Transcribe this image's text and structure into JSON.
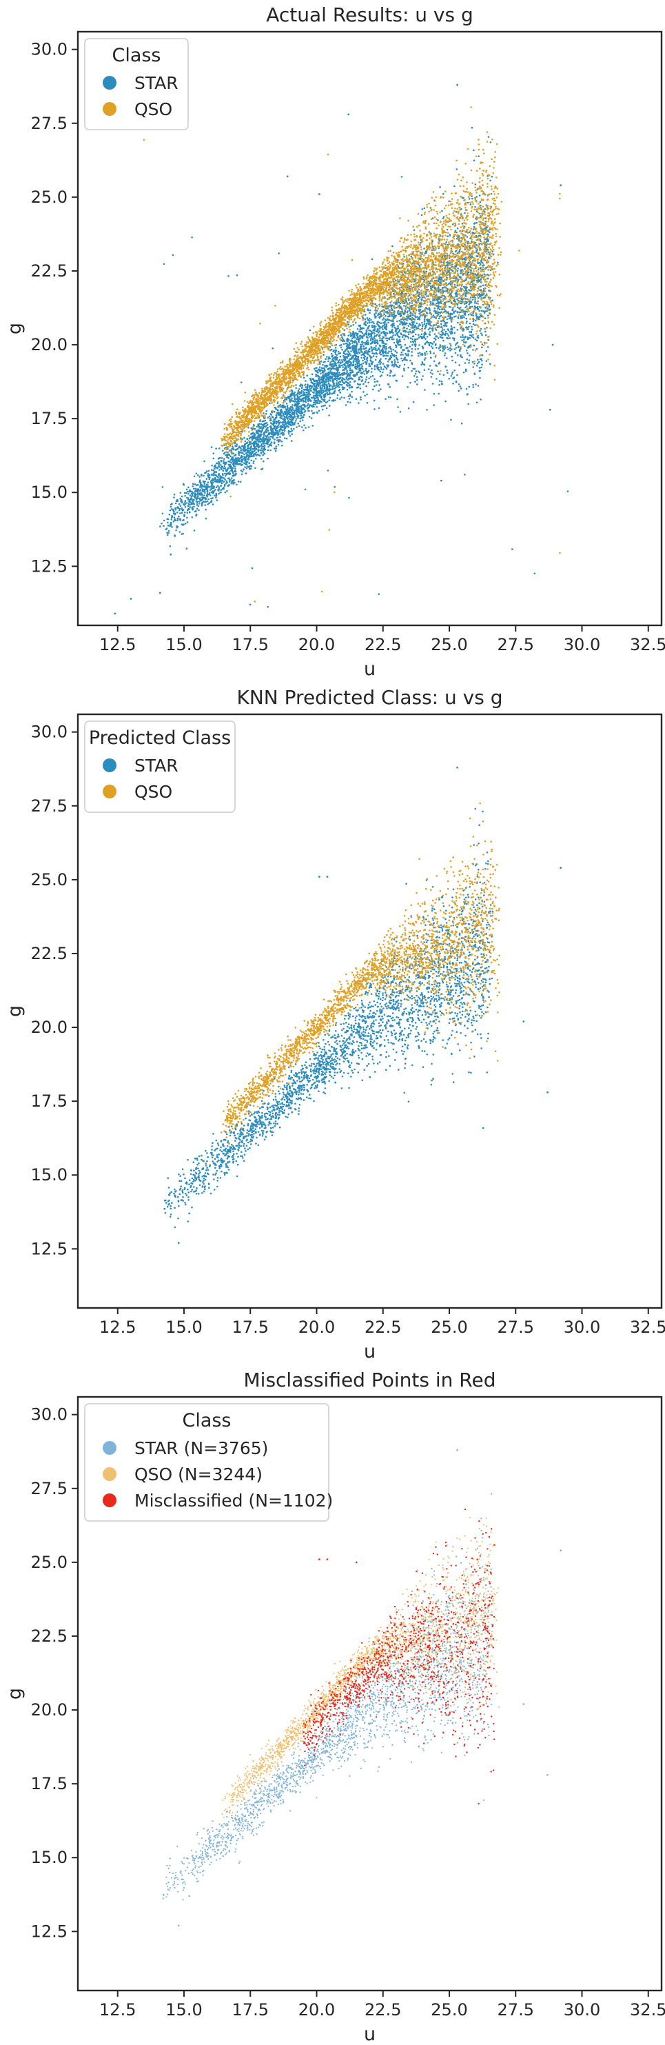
{
  "colors": {
    "star": "#2b8cbe",
    "qso": "#e0a024",
    "star_light": "#7fb3d9",
    "qso_light": "#f0c071",
    "misclassified": "#e8291c"
  },
  "chart_data": [
    {
      "type": "scatter",
      "title": "Actual Results: u vs g",
      "xlabel": "u",
      "ylabel": "g",
      "xlim": [
        11,
        33
      ],
      "ylim": [
        10.5,
        30.6
      ],
      "xticks": [
        "12.5",
        "15.0",
        "17.5",
        "20.0",
        "22.5",
        "25.0",
        "27.5",
        "30.0",
        "32.5"
      ],
      "yticks": [
        "12.5",
        "15.0",
        "17.5",
        "20.0",
        "22.5",
        "25.0",
        "27.5",
        "30.0"
      ],
      "grid": false,
      "legend_placement": "upper-left",
      "legend": {
        "title": "Class",
        "entries": [
          {
            "label": "STAR",
            "color": "#2b8cbe"
          },
          {
            "label": "QSO",
            "color": "#e0a024"
          }
        ]
      },
      "series": [
        {
          "name": "STAR",
          "color": "#2b8cbe",
          "trend": [
            [
              14.0,
              14.0
            ],
            [
              16.0,
              15.6
            ],
            [
              18.0,
              17.0
            ],
            [
              20.0,
              18.9
            ],
            [
              22.0,
              20.6
            ],
            [
              24.0,
              22.3
            ],
            [
              26.0,
              23.0
            ]
          ]
        },
        {
          "name": "QSO",
          "color": "#e0a024",
          "trend": [
            [
              16.5,
              17.0
            ],
            [
              18.0,
              18.3
            ],
            [
              20.0,
              20.2
            ],
            [
              22.0,
              21.6
            ],
            [
              24.0,
              22.4
            ],
            [
              26.0,
              23.4
            ]
          ]
        }
      ]
    },
    {
      "type": "scatter",
      "title": "KNN Predicted Class: u vs g",
      "xlabel": "u",
      "ylabel": "g",
      "xlim": [
        11,
        33
      ],
      "ylim": [
        10.5,
        30.6
      ],
      "xticks": [
        "12.5",
        "15.0",
        "17.5",
        "20.0",
        "22.5",
        "25.0",
        "27.5",
        "30.0",
        "32.5"
      ],
      "yticks": [
        "12.5",
        "15.0",
        "17.5",
        "20.0",
        "22.5",
        "25.0",
        "27.5",
        "30.0"
      ],
      "grid": false,
      "legend_placement": "upper-left",
      "legend": {
        "title": "Predicted Class",
        "entries": [
          {
            "label": "STAR",
            "color": "#2b8cbe"
          },
          {
            "label": "QSO",
            "color": "#e0a024"
          }
        ]
      },
      "series": [
        {
          "name": "STAR",
          "color": "#2b8cbe",
          "trend": [
            [
              15.0,
              14.3
            ],
            [
              17.0,
              15.9
            ],
            [
              19.0,
              17.8
            ],
            [
              21.0,
              19.6
            ],
            [
              23.0,
              21.2
            ],
            [
              25.0,
              22.4
            ]
          ]
        },
        {
          "name": "QSO",
          "color": "#e0a024",
          "trend": [
            [
              17.0,
              17.7
            ],
            [
              18.5,
              18.8
            ],
            [
              20.0,
              20.1
            ],
            [
              22.0,
              21.6
            ],
            [
              24.0,
              22.3
            ]
          ]
        }
      ]
    },
    {
      "type": "scatter",
      "title": "Misclassified Points in Red",
      "xlabel": "u",
      "ylabel": "g",
      "xlim": [
        11,
        33
      ],
      "ylim": [
        10.5,
        30.6
      ],
      "xticks": [
        "12.5",
        "15.0",
        "17.5",
        "20.0",
        "22.5",
        "25.0",
        "27.5",
        "30.0",
        "32.5"
      ],
      "yticks": [
        "12.5",
        "15.0",
        "17.5",
        "20.0",
        "22.5",
        "25.0",
        "27.5",
        "30.0"
      ],
      "grid": false,
      "legend_placement": "upper-left",
      "legend": {
        "title": "Class",
        "entries": [
          {
            "label": "STAR (N=3765)",
            "color": "#7fb3d9"
          },
          {
            "label": "QSO (N=3244)",
            "color": "#f0c071"
          },
          {
            "label": "Misclassified (N=1102)",
            "color": "#e8291c"
          }
        ]
      },
      "series": [
        {
          "name": "STAR (N=3765)",
          "color": "#7fb3d9",
          "count": 3765
        },
        {
          "name": "QSO (N=3244)",
          "color": "#f0c071",
          "count": 3244
        },
        {
          "name": "Misclassified (N=1102)",
          "color": "#e8291c",
          "count": 1102
        }
      ]
    }
  ]
}
